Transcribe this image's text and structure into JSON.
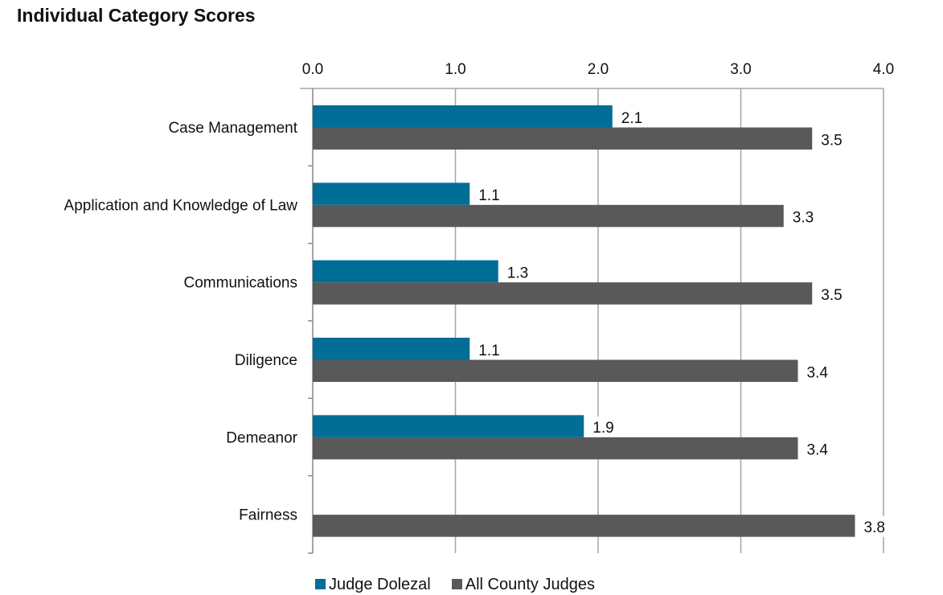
{
  "chart_data": {
    "type": "bar",
    "orientation": "horizontal",
    "title": "Individual Category Scores",
    "categories": [
      "Case Management",
      "Application and Knowledge of Law",
      "Communications",
      "Diligence",
      "Demeanor",
      "Fairness"
    ],
    "series": [
      {
        "name": "Judge Dolezal",
        "color": "#006e96",
        "values": [
          2.1,
          1.1,
          1.3,
          1.1,
          1.9,
          null
        ]
      },
      {
        "name": "All County Judges",
        "color": "#595959",
        "values": [
          3.5,
          3.3,
          3.5,
          3.4,
          3.4,
          3.8
        ]
      }
    ],
    "xlim": [
      0,
      4.0
    ],
    "xticks": [
      "0.0",
      "1.0",
      "2.0",
      "3.0",
      "4.0"
    ],
    "x_axis_position": "top",
    "grid": true,
    "legend": "bottom",
    "data_labels": true
  }
}
